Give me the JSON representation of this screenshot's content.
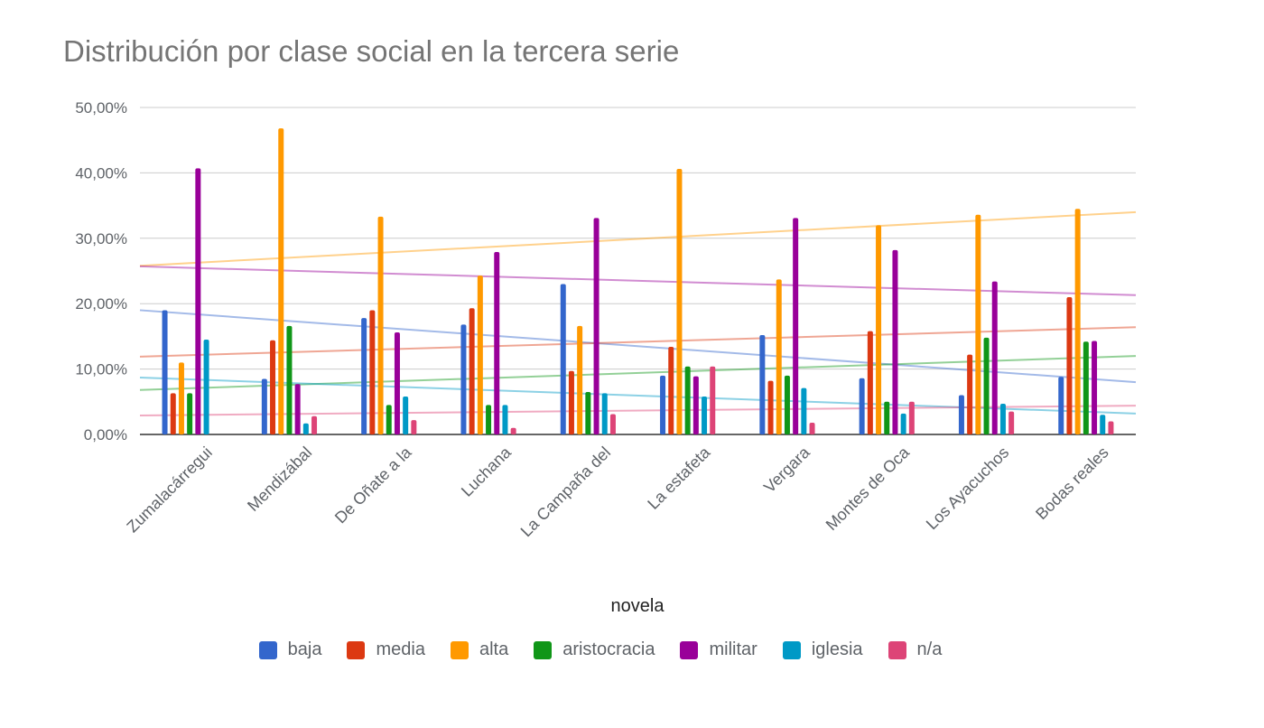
{
  "chart_data": {
    "type": "bar",
    "title": "Distribución por clase social en la tercera serie",
    "xlabel": "novela",
    "ylabel": "",
    "ylim": [
      0,
      0.5
    ],
    "yticks": [
      "0,00%",
      "10,00%",
      "20,00%",
      "30,00%",
      "40,00%",
      "50,00%"
    ],
    "categories": [
      "Zumalacárregui",
      "Mendizábal",
      "De Oñate a la",
      "Luchana",
      "La Campaña del",
      "La estafeta",
      "Vergara",
      "Montes de Oca",
      "Los Ayacuchos",
      "Bodas reales"
    ],
    "series": [
      {
        "name": "baja",
        "color": "#3366cc",
        "values": [
          0.19,
          0.085,
          0.178,
          0.168,
          0.23,
          0.09,
          0.152,
          0.086,
          0.06,
          0.088
        ]
      },
      {
        "name": "media",
        "color": "#dc3912",
        "values": [
          0.063,
          0.144,
          0.19,
          0.193,
          0.097,
          0.134,
          0.082,
          0.158,
          0.122,
          0.21
        ]
      },
      {
        "name": "alta",
        "color": "#ff9900",
        "values": [
          0.11,
          0.468,
          0.333,
          0.243,
          0.166,
          0.406,
          0.237,
          0.32,
          0.336,
          0.345
        ]
      },
      {
        "name": "aristocracia",
        "color": "#109618",
        "values": [
          0.063,
          0.166,
          0.045,
          0.045,
          0.065,
          0.104,
          0.09,
          0.05,
          0.148,
          0.142
        ]
      },
      {
        "name": "militar",
        "color": "#990099",
        "values": [
          0.407,
          0.077,
          0.156,
          0.279,
          0.331,
          0.089,
          0.331,
          0.282,
          0.234,
          0.143
        ]
      },
      {
        "name": "iglesia",
        "color": "#0099c6",
        "values": [
          0.145,
          0.017,
          0.058,
          0.045,
          0.063,
          0.058,
          0.071,
          0.032,
          0.047,
          0.03
        ]
      },
      {
        "name": "n/a",
        "color": "#dd4477",
        "values": [
          0,
          0.028,
          0.022,
          0.01,
          0.031,
          0.104,
          0.018,
          0.05,
          0.035,
          0.02
        ]
      }
    ],
    "trendlines": [
      {
        "series": "baja",
        "start": 0.19,
        "end": 0.08
      },
      {
        "series": "media",
        "start": 0.119,
        "end": 0.164
      },
      {
        "series": "alta",
        "start": 0.258,
        "end": 0.34
      },
      {
        "series": "aristocracia",
        "start": 0.068,
        "end": 0.12
      },
      {
        "series": "militar",
        "start": 0.257,
        "end": 0.213
      },
      {
        "series": "iglesia",
        "start": 0.087,
        "end": 0.032
      },
      {
        "series": "n/a",
        "start": 0.029,
        "end": 0.044
      }
    ],
    "grid": true,
    "legend_position": "bottom"
  }
}
